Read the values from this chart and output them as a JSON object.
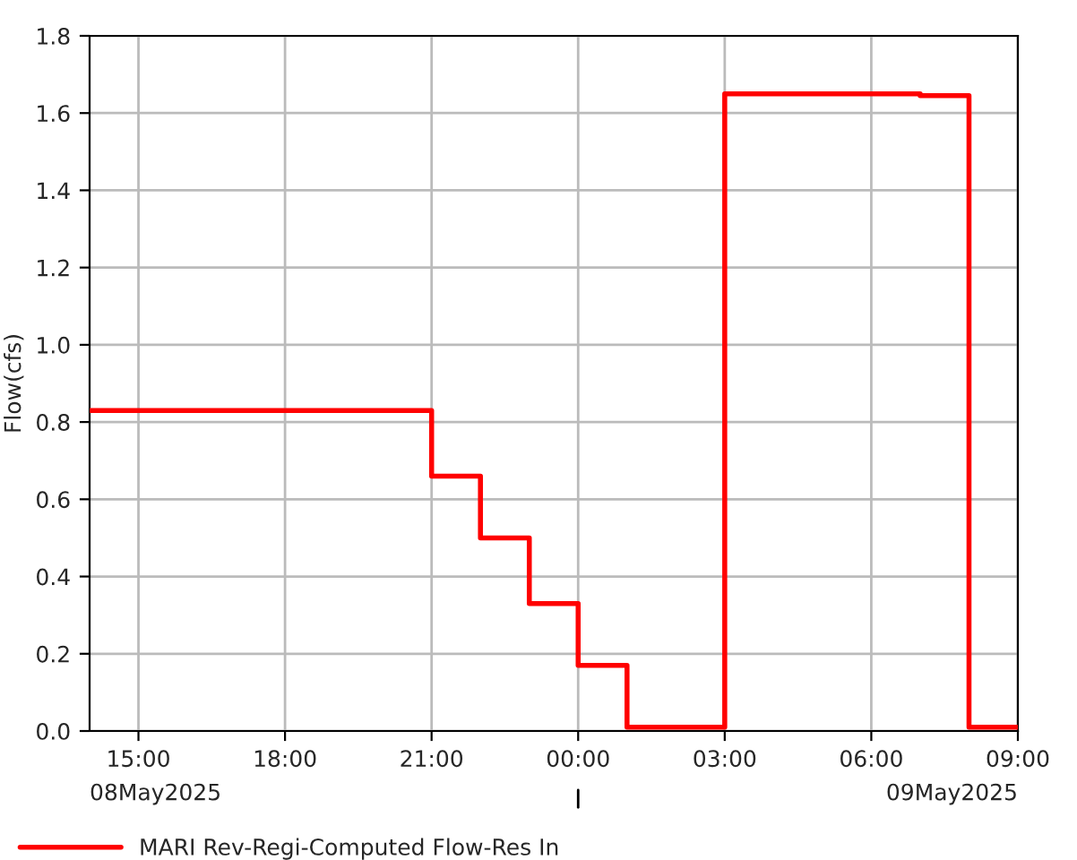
{
  "chart_data": {
    "type": "step",
    "ylabel": "Flow(cfs)",
    "x": [
      "2025-05-08T14:00",
      "2025-05-08T21:00",
      "2025-05-08T22:00",
      "2025-05-08T23:00",
      "2025-05-09T00:00",
      "2025-05-09T01:00",
      "2025-05-09T03:00",
      "2025-05-09T07:00",
      "2025-05-09T08:00",
      "2025-05-09T09:00"
    ],
    "series": [
      {
        "name": "MARI Rev-Regi-Computed Flow-Res In",
        "color": "#ff0000",
        "values": [
          0.83,
          0.66,
          0.5,
          0.33,
          0.17,
          0.01,
          1.65,
          1.645,
          0.01,
          0.01
        ]
      }
    ],
    "xlim": [
      "2025-05-08T14:00",
      "2025-05-09T09:00"
    ],
    "xticks": [
      {
        "value": "2025-05-08T15:00",
        "label": "15:00"
      },
      {
        "value": "2025-05-08T18:00",
        "label": "18:00"
      },
      {
        "value": "2025-05-08T21:00",
        "label": "21:00"
      },
      {
        "value": "2025-05-09T00:00",
        "label": "00:00"
      },
      {
        "value": "2025-05-09T03:00",
        "label": "03:00"
      },
      {
        "value": "2025-05-09T06:00",
        "label": "06:00"
      },
      {
        "value": "2025-05-09T09:00",
        "label": "09:00"
      }
    ],
    "ylim": [
      0,
      1.8
    ],
    "yticks": [
      {
        "value": 0,
        "label": "0.0"
      },
      {
        "value": 0.2,
        "label": "0.2"
      },
      {
        "value": 0.4,
        "label": "0.4"
      },
      {
        "value": 0.6,
        "label": "0.6"
      },
      {
        "value": 0.8,
        "label": "0.8"
      },
      {
        "value": 1.0,
        "label": "1.0"
      },
      {
        "value": 1.2,
        "label": "1.2"
      },
      {
        "value": 1.4,
        "label": "1.4"
      },
      {
        "value": 1.6,
        "label": "1.6"
      },
      {
        "value": 1.8,
        "label": "1.8"
      }
    ],
    "annotations": [
      "08May2025",
      "09May2025"
    ],
    "grid": true,
    "legend": "bottom",
    "line_style": "solid",
    "marker": "none"
  }
}
